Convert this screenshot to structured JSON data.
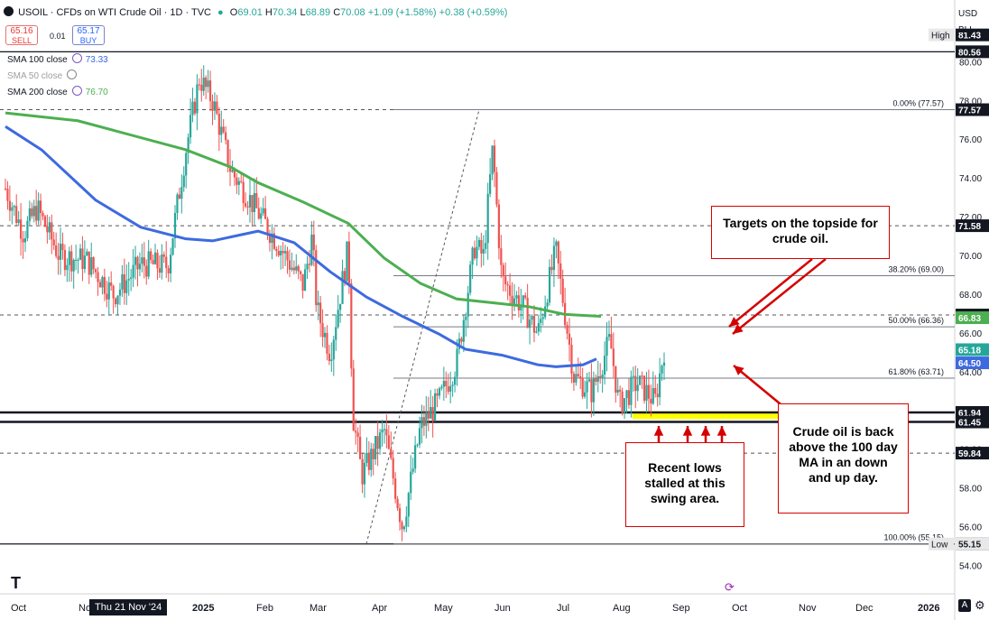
{
  "header": {
    "title": "USOIL · CFDs on WTI Crude Oil · 1D · TVC",
    "ohlc": {
      "o": "69.01",
      "h": "70.34",
      "l": "68.89",
      "c": "70.08"
    },
    "change": "+1.09 (+1.58%)",
    "ext_change": "+0.38 (+0.59%)",
    "sell_price": "65.16",
    "sell_label": "SELL",
    "spread": "0.01",
    "buy_price": "65.17",
    "buy_label": "BUY",
    "currency": "USD",
    "unit": "BLL"
  },
  "indicators": [
    {
      "name": "SMA 100 close",
      "value": "73.33",
      "color": "#3d6ae0"
    },
    {
      "name": "SMA 50 close",
      "value": "",
      "color": "#aaaaaa"
    },
    {
      "name": "SMA 200 close",
      "value": "76.70",
      "color": "#4caf50"
    }
  ],
  "callouts": {
    "targets": "Targets on the topside for crude oil.",
    "lows": "Recent lows stalled at this swing area.",
    "back_above": "Crude oil is back above the 100 day MA in an down and up day."
  },
  "footer": {
    "crosshair_date": "Thu 21 Nov '24"
  },
  "chart_data": {
    "type": "candlestick",
    "ylim": [
      53.6,
      82.3
    ],
    "x_ticks": [
      "Oct",
      "Nov",
      "2025",
      "Feb",
      "Mar",
      "Apr",
      "May",
      "Jun",
      "Jul",
      "Aug",
      "Sep",
      "Oct",
      "Nov",
      "Dec",
      "2026"
    ],
    "y_ticks": [
      54,
      56,
      58,
      60,
      62,
      64,
      66,
      68,
      70,
      72,
      74,
      76,
      78,
      80
    ],
    "price_labels": [
      {
        "text": "81.43",
        "value": 81.43,
        "bg": "#131722",
        "fg": "#ffffff",
        "tag": "High"
      },
      {
        "text": "80.56",
        "value": 80.56,
        "bg": "#131722",
        "fg": "#ffffff"
      },
      {
        "text": "77.57",
        "value": 77.57,
        "bg": "#131722",
        "fg": "#ffffff"
      },
      {
        "text": "71.58",
        "value": 71.58,
        "bg": "#131722",
        "fg": "#ffffff"
      },
      {
        "text": "66.97",
        "value": 66.97,
        "bg": "#131722",
        "fg": "#ffffff"
      },
      {
        "text": "66.83",
        "value": 66.83,
        "bg": "#4caf50",
        "fg": "#ffffff"
      },
      {
        "text": "65.18",
        "value": 65.18,
        "bg": "#26a69a",
        "fg": "#ffffff"
      },
      {
        "text": "64.50",
        "value": 64.5,
        "bg": "#3d6ae0",
        "fg": "#ffffff"
      },
      {
        "text": "61.94",
        "value": 61.94,
        "bg": "#131722",
        "fg": "#ffffff"
      },
      {
        "text": "61.45",
        "value": 61.45,
        "bg": "#131722",
        "fg": "#ffffff"
      },
      {
        "text": "59.84",
        "value": 59.84,
        "bg": "#131722",
        "fg": "#ffffff"
      },
      {
        "text": "55.15",
        "value": 55.15,
        "bg": "#131722",
        "fg": "#ffffff"
      },
      {
        "text": "55.15",
        "value": 55.15,
        "bg": "#e8e8e8",
        "fg": "#131722",
        "tag": "Low"
      }
    ],
    "fib_levels": [
      {
        "label": "0.00% (77.57)",
        "value": 77.57
      },
      {
        "label": "38.20% (69.00)",
        "value": 69.0
      },
      {
        "label": "50.00% (66.36)",
        "value": 66.36
      },
      {
        "label": "61.80% (63.71)",
        "value": 63.71
      },
      {
        "label": "100.00% (55.15)",
        "value": 55.15
      }
    ],
    "horizontal_lines": [
      {
        "value": 80.56,
        "style": "solid",
        "weight": 1.3
      },
      {
        "value": 71.58,
        "style": "dashed",
        "weight": 1
      },
      {
        "value": 77.57,
        "style": "dashed",
        "weight": 1
      },
      {
        "value": 66.97,
        "style": "dashed",
        "weight": 1
      },
      {
        "value": 59.84,
        "style": "dashed",
        "weight": 1
      },
      {
        "value": 61.94,
        "style": "solid",
        "weight": 2.5
      },
      {
        "value": 61.45,
        "style": "solid",
        "weight": 2.5
      },
      {
        "value": 55.15,
        "style": "solid",
        "weight": 1.3
      }
    ],
    "highlight_zone": {
      "from": 61.6,
      "to": 62.0,
      "color": "#ffff00"
    },
    "sma_200": [
      [
        0,
        77.4
      ],
      [
        0.08,
        77.0
      ],
      [
        0.12,
        76.5
      ],
      [
        0.2,
        75.5
      ],
      [
        0.25,
        74.6
      ],
      [
        0.28,
        73.8
      ],
      [
        0.33,
        72.8
      ],
      [
        0.38,
        71.7
      ],
      [
        0.42,
        69.9
      ],
      [
        0.46,
        68.6
      ],
      [
        0.5,
        67.8
      ],
      [
        0.54,
        67.6
      ],
      [
        0.58,
        67.4
      ],
      [
        0.62,
        67.0
      ],
      [
        0.66,
        66.9
      ]
    ],
    "sma_100": [
      [
        0,
        76.7
      ],
      [
        0.04,
        75.5
      ],
      [
        0.1,
        72.9
      ],
      [
        0.15,
        71.5
      ],
      [
        0.2,
        70.9
      ],
      [
        0.23,
        70.8
      ],
      [
        0.28,
        71.3
      ],
      [
        0.32,
        70.7
      ],
      [
        0.36,
        69.2
      ],
      [
        0.4,
        67.9
      ],
      [
        0.44,
        66.9
      ],
      [
        0.48,
        66.0
      ],
      [
        0.51,
        65.2
      ],
      [
        0.55,
        64.9
      ],
      [
        0.59,
        64.4
      ],
      [
        0.61,
        64.3
      ],
      [
        0.64,
        64.4
      ],
      [
        0.655,
        64.7
      ]
    ],
    "candle_path": [
      [
        0,
        73.5
      ],
      [
        0.02,
        71.2
      ],
      [
        0.035,
        72.5
      ],
      [
        0.06,
        70.0
      ],
      [
        0.09,
        69.8
      ],
      [
        0.12,
        68.0
      ],
      [
        0.15,
        69.6
      ],
      [
        0.18,
        69.5
      ],
      [
        0.2,
        75.5
      ],
      [
        0.215,
        79.2
      ],
      [
        0.23,
        78.0
      ],
      [
        0.25,
        74.4
      ],
      [
        0.27,
        73.0
      ],
      [
        0.3,
        70.8
      ],
      [
        0.33,
        68.5
      ],
      [
        0.34,
        71.0
      ],
      [
        0.345,
        67.3
      ],
      [
        0.36,
        65.0
      ],
      [
        0.38,
        70.5
      ],
      [
        0.385,
        61.8
      ],
      [
        0.395,
        58.7
      ],
      [
        0.42,
        61.0
      ],
      [
        0.44,
        56.0
      ],
      [
        0.46,
        61.2
      ],
      [
        0.48,
        62.5
      ],
      [
        0.5,
        64.5
      ],
      [
        0.52,
        70.5
      ],
      [
        0.53,
        70.0
      ],
      [
        0.54,
        75.6
      ],
      [
        0.55,
        68.8
      ],
      [
        0.575,
        67.3
      ],
      [
        0.59,
        66.0
      ],
      [
        0.61,
        70.3
      ],
      [
        0.63,
        63.8
      ],
      [
        0.65,
        63.0
      ],
      [
        0.67,
        65.7
      ],
      [
        0.68,
        62.3
      ],
      [
        0.7,
        63.5
      ],
      [
        0.72,
        62.5
      ],
      [
        0.73,
        65.2
      ]
    ],
    "fan_line": [
      [
        0.4,
        55.15
      ],
      [
        0.525,
        77.57
      ]
    ]
  }
}
